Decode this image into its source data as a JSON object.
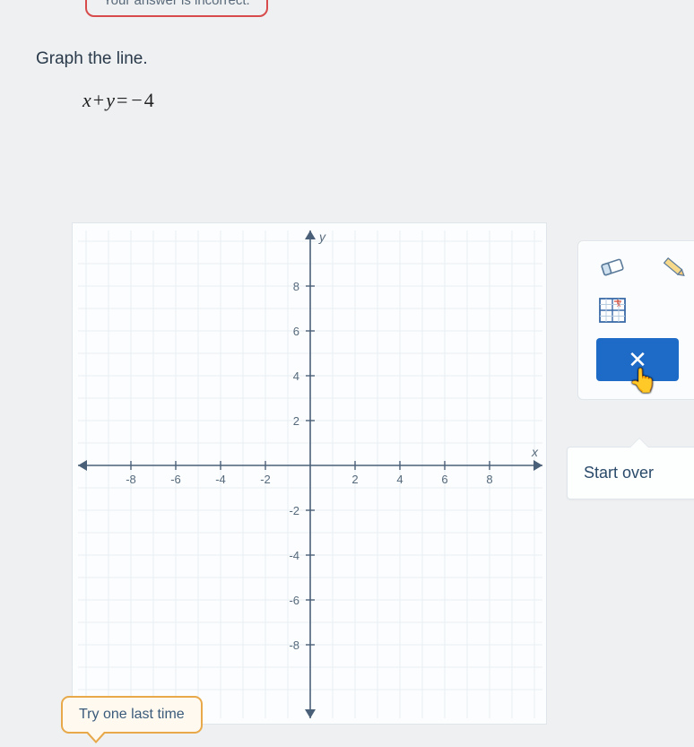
{
  "banner": {
    "text": "Your answer is incorrect."
  },
  "prompt": {
    "instruction": "Graph the line.",
    "equation_left1": "x",
    "equation_plus": "+",
    "equation_left2": "y",
    "equation_eq": "=",
    "equation_minus": "−",
    "equation_right": "4"
  },
  "graph": {
    "x_axis_label": "x",
    "y_axis_label": "y",
    "min": -10,
    "max": 10,
    "y_ticks_pos": [
      "8",
      "6",
      "4",
      "2"
    ],
    "y_ticks_neg": [
      "-2",
      "-4",
      "-6",
      "-8"
    ],
    "x_ticks_neg": [
      "-8",
      "-6",
      "-4",
      "-2"
    ],
    "x_ticks_pos": [
      "2",
      "4",
      "6",
      "8"
    ],
    "grid_minor_color": "#e8eef3",
    "grid_major_color": "#c8d4de",
    "axis_color": "#4a6078"
  },
  "toolbar": {
    "eraser_name": "eraser-icon",
    "pencil_name": "pencil-icon",
    "grid_tool_name": "grid-tool-icon",
    "close_label": "×",
    "cursor_glyph": "☟",
    "start_over_label": "Start over"
  },
  "hint": {
    "text": "Try one last time"
  }
}
